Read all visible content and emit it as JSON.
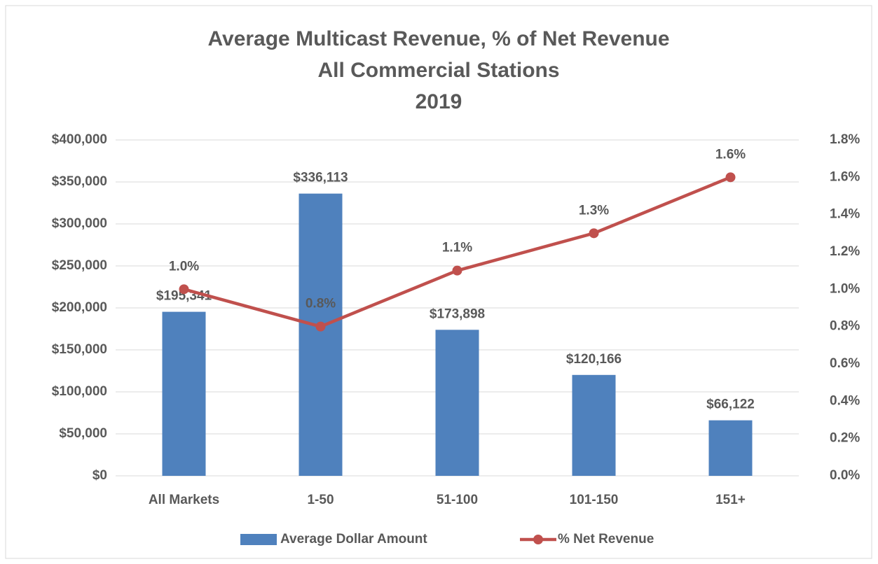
{
  "chart_data": {
    "type": "bar",
    "title": [
      "Average Multicast Revenue, % of Net Revenue",
      "All Commercial Stations",
      "2019"
    ],
    "categories": [
      "All Markets",
      "1-50",
      "51-100",
      "101-150",
      "151+"
    ],
    "series": [
      {
        "name": "Average Dollar Amount",
        "type": "bar",
        "color": "#4f81bd",
        "values": [
          195341,
          336113,
          173898,
          120166,
          66122
        ],
        "value_labels": [
          "$195,341",
          "$336,113",
          "$173,898",
          "$120,166",
          "$66,122"
        ]
      },
      {
        "name": "% Net Revenue",
        "type": "line",
        "axis": "y2",
        "color": "#c0504d",
        "values": [
          1.0,
          0.8,
          1.1,
          1.3,
          1.6
        ],
        "value_labels": [
          "1.0%",
          "0.8%",
          "1.1%",
          "1.3%",
          "1.6%"
        ]
      }
    ],
    "ylim": [
      0,
      400000
    ],
    "yticks": [
      {
        "value": 0,
        "label": "$0"
      },
      {
        "value": 50000,
        "label": "$50,000"
      },
      {
        "value": 100000,
        "label": "$100,000"
      },
      {
        "value": 150000,
        "label": "$150,000"
      },
      {
        "value": 200000,
        "label": "$200,000"
      },
      {
        "value": 250000,
        "label": "$250,000"
      },
      {
        "value": 300000,
        "label": "$300,000"
      },
      {
        "value": 350000,
        "label": "$350,000"
      },
      {
        "value": 400000,
        "label": "$400,000"
      }
    ],
    "y2lim": [
      0,
      1.8
    ],
    "y2ticks": [
      {
        "value": 0,
        "label": "0.0%"
      },
      {
        "value": 0.2,
        "label": "0.2%"
      },
      {
        "value": 0.4,
        "label": "0.4%"
      },
      {
        "value": 0.6,
        "label": "0.6%"
      },
      {
        "value": 0.8,
        "label": "0.8%"
      },
      {
        "value": 1.0,
        "label": "1.0%"
      },
      {
        "value": 1.2,
        "label": "1.2%"
      },
      {
        "value": 1.4,
        "label": "1.4%"
      },
      {
        "value": 1.6,
        "label": "1.6%"
      },
      {
        "value": 1.8,
        "label": "1.8%"
      }
    ],
    "grid": true,
    "legend": "bottom"
  }
}
